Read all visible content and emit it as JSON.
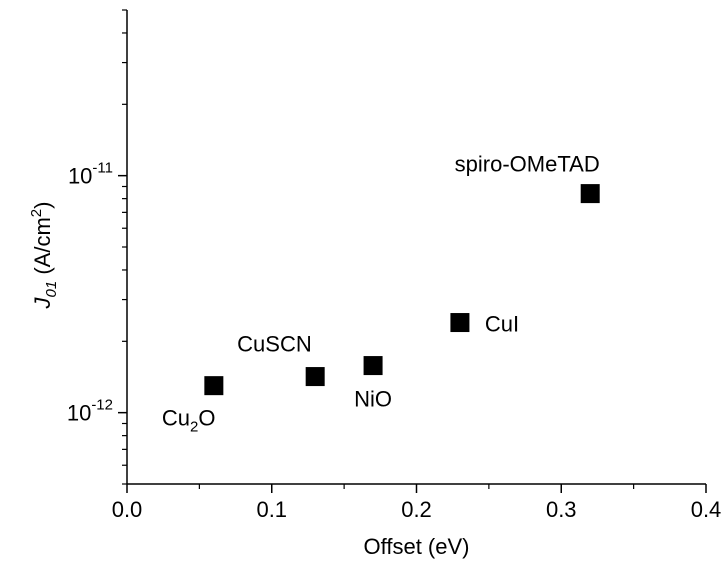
{
  "chart_data": {
    "type": "scatter",
    "xlabel": "Offset (eV)",
    "ylabel": {
      "symbol": "J",
      "subscript": "01",
      "unit_prefix": " (A/cm",
      "unit_superscript": "2",
      "unit_suffix": ")"
    },
    "xlim": [
      0.0,
      0.4
    ],
    "ylim": [
      5e-13,
      5e-11
    ],
    "yscale": "log",
    "grid": false,
    "marker": "square",
    "marker_color": "#000000",
    "x_ticks": [
      {
        "value": 0.0,
        "label": "0.0"
      },
      {
        "value": 0.1,
        "label": "0.1"
      },
      {
        "value": 0.2,
        "label": "0.2"
      },
      {
        "value": 0.3,
        "label": "0.3"
      },
      {
        "value": 0.4,
        "label": "0.4"
      }
    ],
    "y_ticks": [
      {
        "value": 1e-12,
        "base": "10",
        "exp": "-12"
      },
      {
        "value": 1e-11,
        "base": "10",
        "exp": "-11"
      }
    ],
    "points": [
      {
        "x": 0.06,
        "y": 1.3e-12,
        "label": "Cu",
        "label_sub": "2",
        "label_after": "O",
        "label_pos": "below-left"
      },
      {
        "x": 0.13,
        "y": 1.42e-12,
        "label": "CuSCN",
        "label_pos": "above-left"
      },
      {
        "x": 0.17,
        "y": 1.58e-12,
        "label": "NiO",
        "label_pos": "below"
      },
      {
        "x": 0.23,
        "y": 2.4e-12,
        "label": "CuI",
        "label_pos": "right"
      },
      {
        "x": 0.32,
        "y": 8.4e-12,
        "label": "spiro-OMeTAD",
        "label_pos": "above"
      }
    ]
  }
}
